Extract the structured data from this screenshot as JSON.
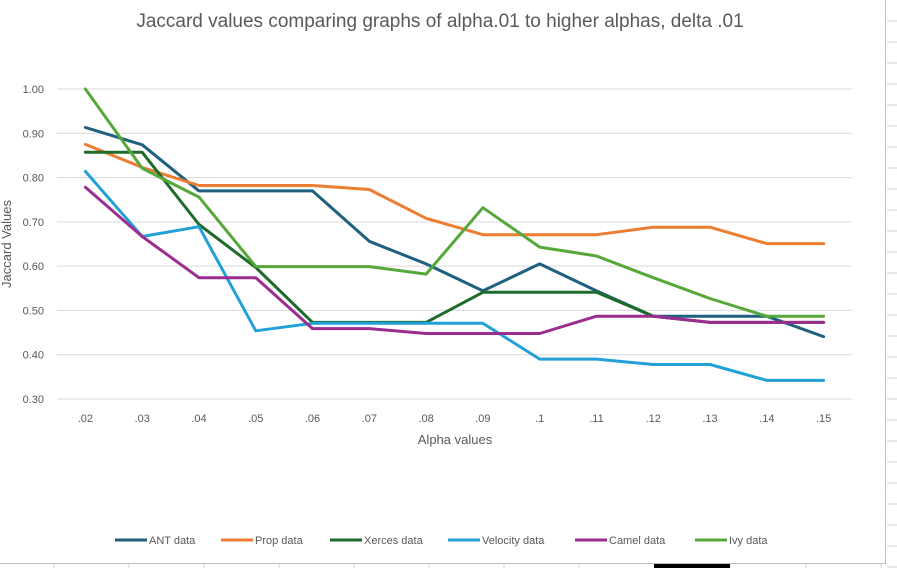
{
  "chart_data": {
    "type": "line",
    "title": "Jaccard values comparing graphs of alpha.01 to higher alphas, delta .01",
    "xlabel": "Alpha values",
    "ylabel": "Jaccard Values",
    "categories": [
      ".02",
      ".03",
      ".04",
      ".05",
      ".06",
      ".07",
      ".08",
      ".09",
      ".1",
      ".11",
      ".12",
      ".13",
      ".14",
      ".15"
    ],
    "y_ticks": [
      "0.30",
      "0.40",
      "0.50",
      "0.60",
      "0.70",
      "0.80",
      "0.90",
      "1.00"
    ],
    "ylim": [
      0.3,
      1.0
    ],
    "grid": true,
    "legend_position": "bottom",
    "series": [
      {
        "name": "ANT data",
        "color": "#1f5f7f",
        "values": [
          0.913,
          0.874,
          0.77,
          0.77,
          0.77,
          0.656,
          0.605,
          0.544,
          0.605,
          0.544,
          0.487,
          0.487,
          0.487,
          0.441
        ]
      },
      {
        "name": "Prop data",
        "color": "#ed7d31",
        "values": [
          0.875,
          0.823,
          0.782,
          0.782,
          0.782,
          0.773,
          0.708,
          0.671,
          0.671,
          0.671,
          0.688,
          0.688,
          0.651,
          0.651
        ]
      },
      {
        "name": "Xerces data",
        "color": "#1e6b2c",
        "values": [
          0.857,
          0.857,
          0.694,
          0.597,
          0.473,
          0.473,
          0.473,
          0.541,
          0.541,
          0.541,
          0.487,
          0.473,
          0.473,
          0.473
        ]
      },
      {
        "name": "Velocity data",
        "color": "#22a1d8",
        "values": [
          0.814,
          0.667,
          0.689,
          0.454,
          0.471,
          0.471,
          0.471,
          0.471,
          0.39,
          0.39,
          0.378,
          0.378,
          0.342,
          0.342
        ]
      },
      {
        "name": "Camel data",
        "color": "#9b2d91",
        "values": [
          0.778,
          0.667,
          0.574,
          0.574,
          0.459,
          0.459,
          0.448,
          0.448,
          0.448,
          0.487,
          0.487,
          0.473,
          0.473,
          0.473
        ]
      },
      {
        "name": "Ivy data",
        "color": "#55a839",
        "values": [
          1.0,
          0.821,
          0.756,
          0.599,
          0.599,
          0.599,
          0.582,
          0.732,
          0.643,
          0.623,
          0.574,
          0.527,
          0.487,
          0.487
        ]
      }
    ]
  }
}
